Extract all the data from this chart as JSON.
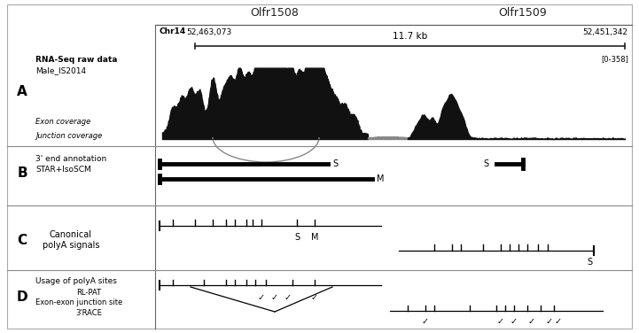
{
  "title_left": "Olfr1508",
  "title_right": "Olfr1509",
  "chr_label": "Chr14",
  "coord_left": "52,463,073",
  "coord_right": "52,451,342",
  "kb_label": "11.7 kb",
  "scale_label": "[0-358]",
  "panel_A_label": "A",
  "panel_A_text1": "RNA-Seq raw data",
  "panel_A_text2": "Male_IS2014",
  "panel_A_sub1": "Exon coverage",
  "panel_A_sub2": "Junction coverage",
  "panel_B_label": "B",
  "panel_B_text1": "3' end annotation",
  "panel_B_text2": "STAR+IsoSCM",
  "panel_C_label": "C",
  "panel_C_text1": "Canonical",
  "panel_C_text2": "polyA signals",
  "panel_D_label": "D",
  "panel_D_text1": "Usage of polyA sites",
  "panel_D_text2": "RL-PAT",
  "panel_D_text3": "Exon-exon junction site",
  "panel_D_text4": "3'RACE",
  "bg_color": "#ffffff"
}
